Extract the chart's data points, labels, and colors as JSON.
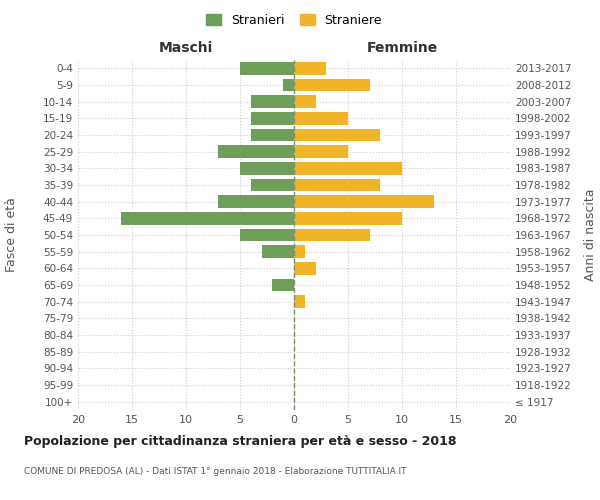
{
  "age_groups": [
    "100+",
    "95-99",
    "90-94",
    "85-89",
    "80-84",
    "75-79",
    "70-74",
    "65-69",
    "60-64",
    "55-59",
    "50-54",
    "45-49",
    "40-44",
    "35-39",
    "30-34",
    "25-29",
    "20-24",
    "15-19",
    "10-14",
    "5-9",
    "0-4"
  ],
  "birth_years": [
    "≤ 1917",
    "1918-1922",
    "1923-1927",
    "1928-1932",
    "1933-1937",
    "1938-1942",
    "1943-1947",
    "1948-1952",
    "1953-1957",
    "1958-1962",
    "1963-1967",
    "1968-1972",
    "1973-1977",
    "1978-1982",
    "1983-1987",
    "1988-1992",
    "1993-1997",
    "1998-2002",
    "2003-2007",
    "2008-2012",
    "2013-2017"
  ],
  "males": [
    0,
    0,
    0,
    0,
    0,
    0,
    0,
    2,
    0,
    3,
    5,
    16,
    7,
    4,
    5,
    7,
    4,
    4,
    4,
    1,
    5
  ],
  "females": [
    0,
    0,
    0,
    0,
    0,
    0,
    1,
    0,
    2,
    1,
    7,
    10,
    13,
    8,
    10,
    5,
    8,
    5,
    2,
    7,
    3
  ],
  "male_color": "#6d9e5a",
  "female_color": "#f0b429",
  "center_line_color": "#888855",
  "title": "Popolazione per cittadinanza straniera per età e sesso - 2018",
  "subtitle": "COMUNE DI PREDOSA (AL) - Dati ISTAT 1° gennaio 2018 - Elaborazione TUTTITALIA.IT",
  "xlabel_left": "Maschi",
  "xlabel_right": "Femmine",
  "ylabel_left": "Fasce di età",
  "ylabel_right": "Anni di nascita",
  "legend_male": "Stranieri",
  "legend_female": "Straniere",
  "xlim": 20,
  "background_color": "#ffffff",
  "grid_color": "#cccccc"
}
